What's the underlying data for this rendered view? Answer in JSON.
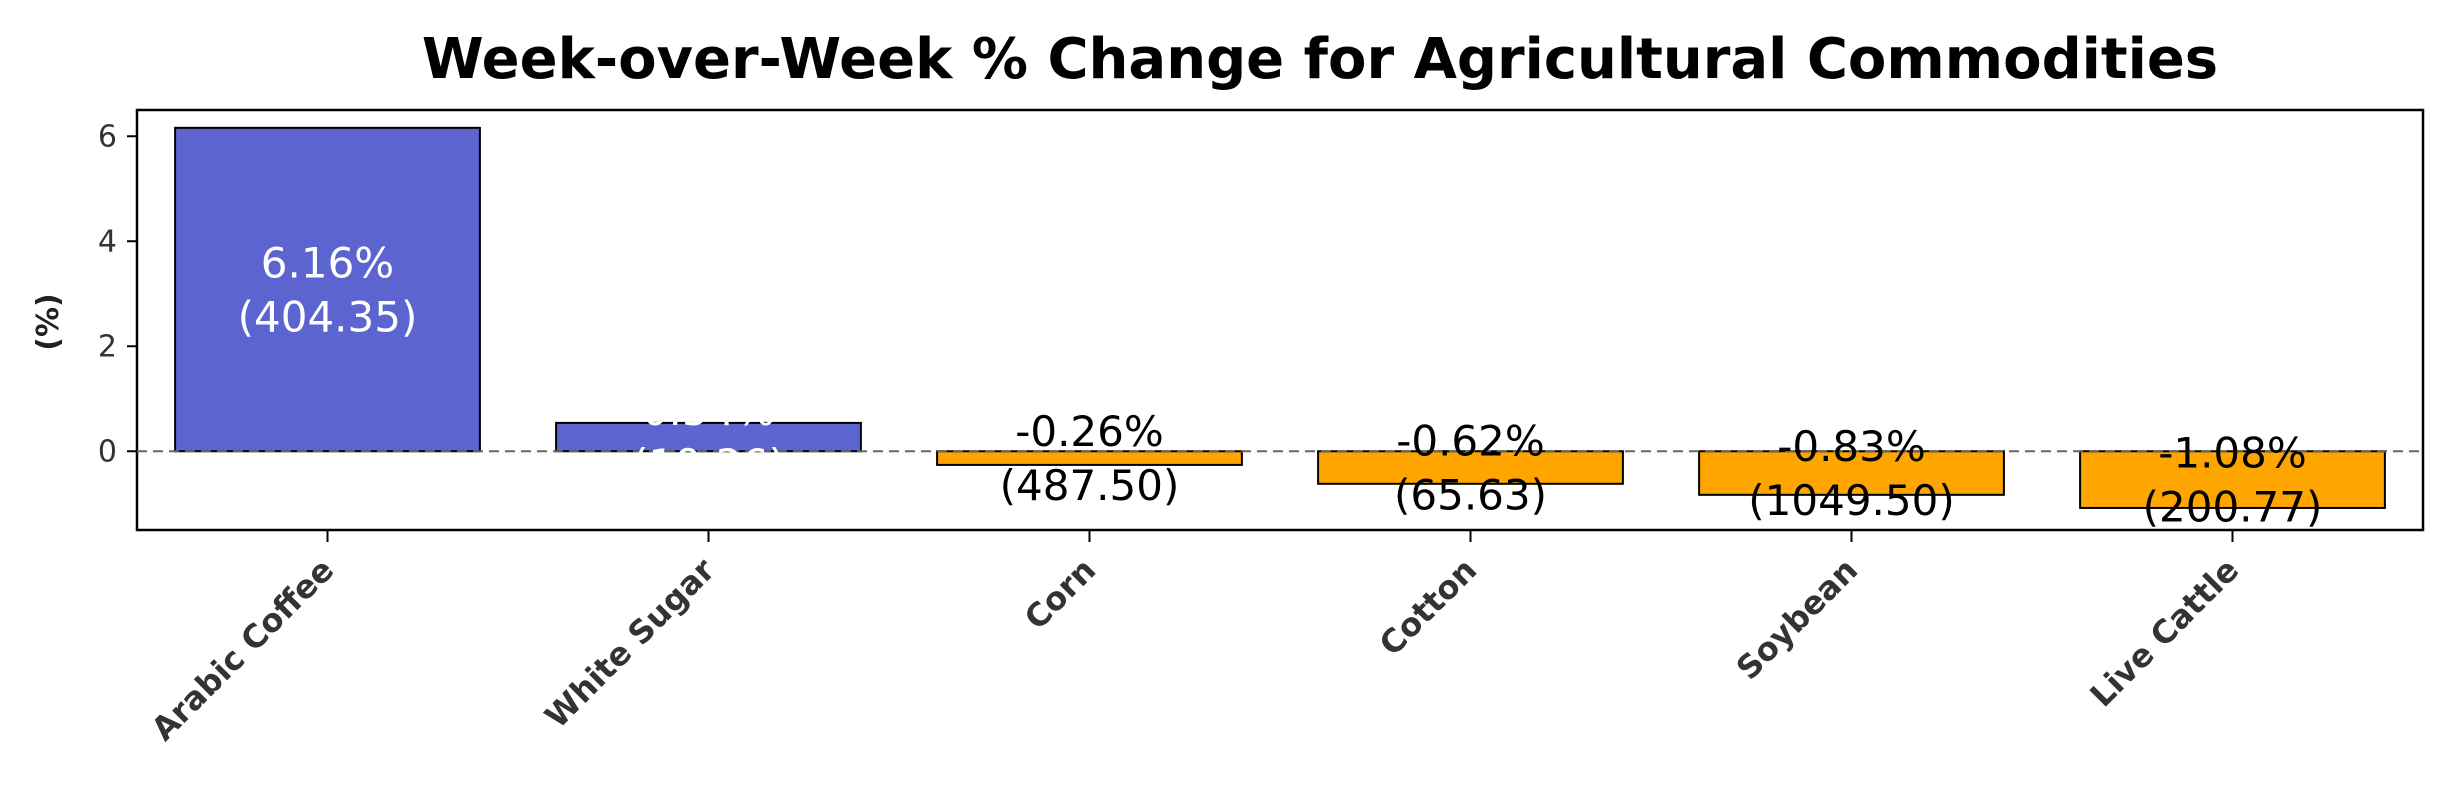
{
  "chart_data": {
    "type": "bar",
    "title": "Week-over-Week % Change for Agricultural Commodities",
    "xlabel": "",
    "ylabel": "(%)",
    "ylim": [
      -1.5,
      6.5
    ],
    "yticks": [
      0,
      2,
      4,
      6
    ],
    "categories": [
      "Arabic Coffee",
      "White Sugar",
      "Corn",
      "Cotton",
      "Soybean",
      "Live Cattle"
    ],
    "values": [
      6.16,
      0.54,
      -0.26,
      -0.62,
      -0.83,
      -1.08
    ],
    "data_labels": [
      [
        "6.16%",
        "(404.35)"
      ],
      [
        "0.54%",
        "(19.36)"
      ],
      [
        "-0.26%",
        "(487.50)"
      ],
      [
        "-0.62%",
        "(65.63)"
      ],
      [
        "-0.83%",
        "(1049.50)"
      ],
      [
        "-1.08%",
        "(200.77)"
      ]
    ],
    "colors": {
      "positive": "#5b64cf",
      "negative": "#ffa500",
      "edge": "#000000",
      "zero_line": "#666666"
    },
    "grid": false,
    "zero_reference_line": "dashed"
  }
}
